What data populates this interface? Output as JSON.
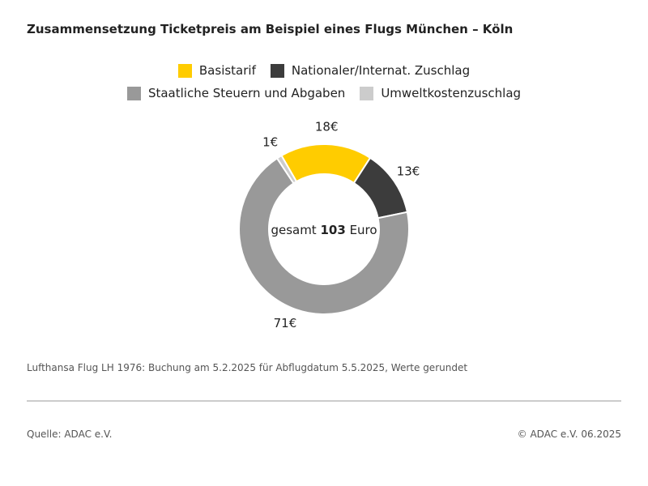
{
  "chart_data": {
    "type": "donut",
    "title": "Zusammensetzung Ticketpreis am Beispiel eines Flugs München – Köln",
    "categories": [
      "Basistarif",
      "Nationaler/Internat. Zuschlag",
      "Staatliche Steuern und Abgaben",
      "Umweltkostenzuschlag"
    ],
    "values": [
      18,
      13,
      71,
      1
    ],
    "value_labels": [
      "18€",
      "13€",
      "71€",
      "1€"
    ],
    "colors": [
      "#ffcc00",
      "#3c3c3c",
      "#999999",
      "#cccccc"
    ],
    "center_prefix": "gesamt",
    "total": 103,
    "center_suffix": "Euro",
    "note": "Lufthansa Flug LH 1976: Buchung am 5.2.2025 für Abflugdatum 5.5.2025, Werte gerundet",
    "source": "Quelle: ADAC e.V.",
    "copyright": "© ADAC e.V. 06.2025"
  }
}
